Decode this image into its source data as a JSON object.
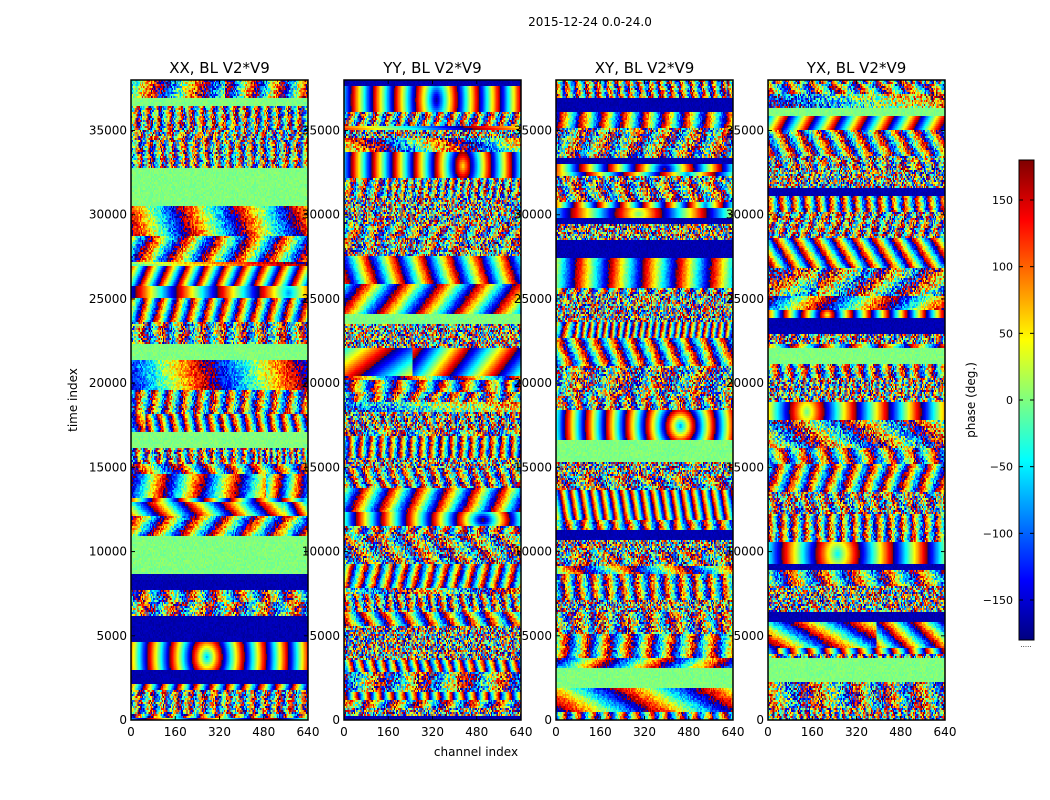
{
  "figure_title": "2015-12-24 0.0-24.0",
  "xlabel": "channel index",
  "ylabel": "time index",
  "colorbar": {
    "label": "phase (deg.)",
    "range": [
      -180,
      180
    ],
    "ticks": [
      150,
      100,
      50,
      0,
      -50,
      -100,
      -150
    ],
    "tick_labels": [
      "150",
      "100",
      "50",
      "0",
      "−50",
      "−100",
      "−150"
    ],
    "colormap": "jet",
    "colors": [
      "#00007f",
      "#0000ff",
      "#007fff",
      "#00ffff",
      "#7fff7f",
      "#ffff00",
      "#ff7f00",
      "#ff0000",
      "#7f0000"
    ],
    "bottom_dots": "....."
  },
  "chart_data": [
    {
      "type": "heatmap",
      "title": "XX, BL V2*V9",
      "seed": 11,
      "xlim": [
        0,
        640
      ],
      "ylim": [
        0,
        38000
      ],
      "xticks": [
        0,
        160,
        320,
        480,
        640
      ],
      "xtick_labels": [
        "0",
        "160",
        "320",
        "480",
        "640"
      ],
      "yticks": [
        0,
        5000,
        10000,
        15000,
        20000,
        25000,
        30000,
        35000
      ],
      "ytick_labels": [
        "0",
        "5000",
        "10000",
        "15000",
        "20000",
        "25000",
        "30000",
        "35000"
      ],
      "value_range": [
        -180,
        180
      ],
      "colorbar_label": "phase (deg.)"
    },
    {
      "type": "heatmap",
      "title": "YY, BL V2*V9",
      "seed": 23,
      "xlim": [
        0,
        640
      ],
      "ylim": [
        0,
        38000
      ],
      "xticks": [
        0,
        160,
        320,
        480,
        640
      ],
      "xtick_labels": [
        "0",
        "160",
        "320",
        "480",
        "640"
      ],
      "yticks": [
        0,
        5000,
        10000,
        15000,
        20000,
        25000,
        30000,
        35000
      ],
      "ytick_labels": [
        "0",
        "5000",
        "10000",
        "15000",
        "20000",
        "25000",
        "30000",
        "35000"
      ],
      "value_range": [
        -180,
        180
      ],
      "colorbar_label": "phase (deg.)"
    },
    {
      "type": "heatmap",
      "title": "XY, BL V2*V9",
      "seed": 37,
      "xlim": [
        0,
        640
      ],
      "ylim": [
        0,
        38000
      ],
      "xticks": [
        0,
        160,
        320,
        480,
        640
      ],
      "xtick_labels": [
        "0",
        "160",
        "320",
        "480",
        "640"
      ],
      "yticks": [
        0,
        5000,
        10000,
        15000,
        20000,
        25000,
        30000,
        35000
      ],
      "ytick_labels": [
        "0",
        "5000",
        "10000",
        "15000",
        "20000",
        "25000",
        "30000",
        "35000"
      ],
      "value_range": [
        -180,
        180
      ],
      "colorbar_label": "phase (deg.)"
    },
    {
      "type": "heatmap",
      "title": "YX, BL V2*V9",
      "seed": 53,
      "xlim": [
        0,
        640
      ],
      "ylim": [
        0,
        38000
      ],
      "xticks": [
        0,
        160,
        320,
        480,
        640
      ],
      "xtick_labels": [
        "0",
        "160",
        "320",
        "480",
        "640"
      ],
      "yticks": [
        0,
        5000,
        10000,
        15000,
        20000,
        25000,
        30000,
        35000
      ],
      "ytick_labels": [
        "0",
        "5000",
        "10000",
        "15000",
        "20000",
        "25000",
        "30000",
        "35000"
      ],
      "value_range": [
        -180,
        180
      ],
      "colorbar_label": "phase (deg.)"
    }
  ]
}
